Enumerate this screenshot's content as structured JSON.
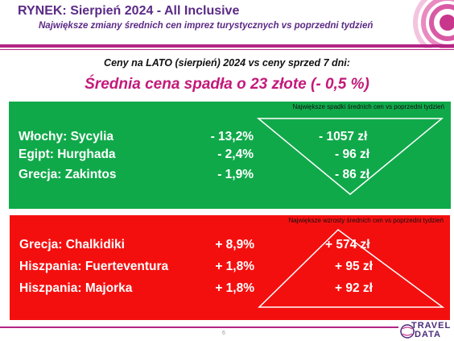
{
  "header": {
    "title": "RYNEK: Sierpień 2024 - All Inclusive",
    "subtitle": "Największe zmiany średnich cen imprez turystycznych vs poprzedni tydzień"
  },
  "summary": {
    "line1": "Ceny na LATO (sierpień) 2024 vs ceny sprzed 7 dni:",
    "line2": "Średnia cena spadła o 23 złote (- 0,5 %)"
  },
  "drops": {
    "caption": "Największe spadki średnich cen vs poprzedni tydzień",
    "rows": [
      {
        "name": "Włochy: Sycylia",
        "pct": "-  13,2%",
        "amount": "- 1057 zł"
      },
      {
        "name": "Egipt: Hurghada",
        "pct": "-  2,4%",
        "amount": "- 96 zł"
      },
      {
        "name": "Grecja: Zakintos",
        "pct": "-  1,9%",
        "amount": "- 86 zł"
      }
    ]
  },
  "rises": {
    "caption": "Największe wzrosty średnich cen vs poprzedni tydzień",
    "rows": [
      {
        "name": "Grecja: Chalkidiki",
        "pct": "+ 8,9%",
        "amount": "+ 574 zł"
      },
      {
        "name": "Hiszpania: Fuerteventura",
        "pct": "+ 1,8%",
        "amount": "+ 95 zł"
      },
      {
        "name": "Hiszpania: Majorka",
        "pct": "+ 1,8%",
        "amount": "+ 92 zł"
      }
    ]
  },
  "footer": {
    "page": "6",
    "logo_top": "TRAVEL",
    "logo_bottom": "DATA"
  },
  "colors": {
    "accent": "#b32585",
    "title": "#5b2a86",
    "green_panel": "#10a94a",
    "red_panel": "#f40f0f"
  }
}
